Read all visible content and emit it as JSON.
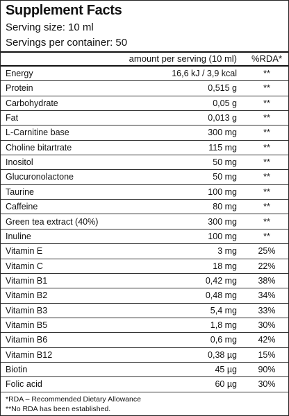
{
  "header": {
    "title": "Supplement Facts",
    "serving_size": "Serving size: 10 ml",
    "servings_per_container": "Servings per container: 50"
  },
  "table": {
    "columns": [
      "amount per serving (10 ml)",
      "%RDA*"
    ],
    "rows": [
      [
        "Energy",
        "16,6 kJ / 3,9 kcal",
        "**"
      ],
      [
        "Protein",
        "0,515 g",
        "**"
      ],
      [
        "Carbohydrate",
        "0,05 g",
        "**"
      ],
      [
        "Fat",
        "0,013 g",
        "**"
      ],
      [
        "L-Carnitine base",
        "300 mg",
        "**"
      ],
      [
        "Choline bitartrate",
        "115 mg",
        "**"
      ],
      [
        "Inositol",
        "50 mg",
        "**"
      ],
      [
        "Glucuronolactone",
        "50 mg",
        "**"
      ],
      [
        "Taurine",
        "100 mg",
        "**"
      ],
      [
        "Caffeine",
        "80 mg",
        "**"
      ],
      [
        "Green tea extract (40%)",
        "300 mg",
        "**"
      ],
      [
        "Inuline",
        "100 mg",
        "**"
      ],
      [
        "Vitamin E",
        "3 mg",
        "25%"
      ],
      [
        "Vitamin C",
        "18 mg",
        "22%"
      ],
      [
        "Vitamin B1",
        "0,42 mg",
        "38%"
      ],
      [
        "Vitamin B2",
        "0,48 mg",
        "34%"
      ],
      [
        "Vitamin B3",
        "5,4 mg",
        "33%"
      ],
      [
        "Vitamin B5",
        "1,8 mg",
        "30%"
      ],
      [
        "Vitamin B6",
        "0,6 mg",
        "42%"
      ],
      [
        "Vitamin B12",
        "0,38 µg",
        "15%"
      ],
      [
        "Biotin",
        "45 µg",
        "90%"
      ],
      [
        "Folic acid",
        "60 µg",
        "30%"
      ]
    ]
  },
  "footnotes": [
    "*RDA – Recommended Dietary Allowance",
    "**No RDA has been established."
  ]
}
